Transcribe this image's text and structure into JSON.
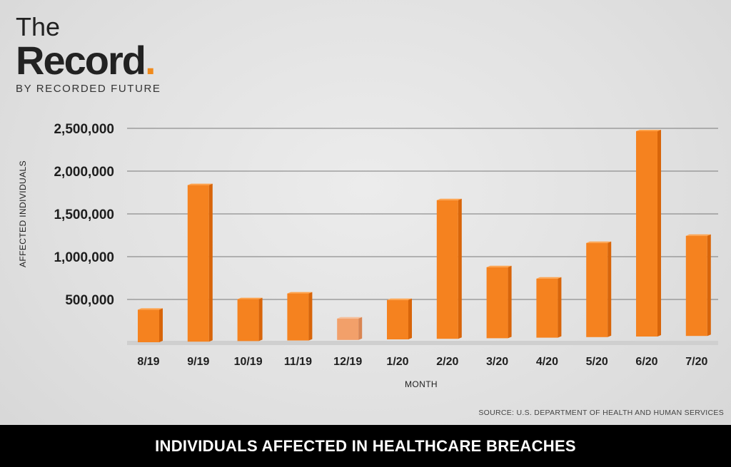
{
  "logo": {
    "line1": "The",
    "line2": "Record",
    "dot": ".",
    "tagline": "BY RECORDED FUTURE"
  },
  "source": "SOURCE: U.S. DEPARTMENT OF HEALTH AND HUMAN SERVICES",
  "footer_title": "INDIVIDUALS AFFECTED IN HEALTHCARE BREACHES",
  "colors": {
    "bar": "#f5821f",
    "bar_highlight": "#f2a06a",
    "footer_bg": "#000000",
    "brand_dot": "#f08a1c"
  },
  "chart_data": {
    "type": "bar",
    "categories": [
      "8/19",
      "9/19",
      "10/19",
      "11/19",
      "12/19",
      "1/20",
      "2/20",
      "3/20",
      "4/20",
      "5/20",
      "6/20",
      "7/20"
    ],
    "values": [
      380000,
      1830000,
      490000,
      550000,
      250000,
      460000,
      1620000,
      830000,
      690000,
      1100000,
      2400000,
      1170000
    ],
    "highlight_index": 4,
    "xlabel": "MONTH",
    "ylabel": "AFFECTED INDIVIDUALS",
    "ylim": [
      0,
      2500000
    ],
    "yticks": [
      500000,
      1000000,
      1500000,
      2000000,
      2500000
    ],
    "ytick_labels": [
      "500,000",
      "1,000,000",
      "1,500,000",
      "2,000,000",
      "2,500,000"
    ],
    "grid": true
  }
}
